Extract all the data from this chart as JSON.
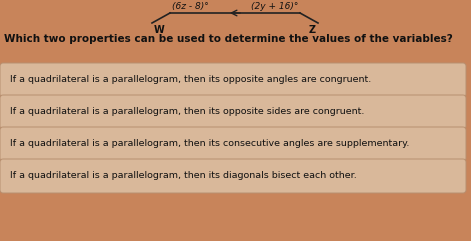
{
  "background_color": "#c8845a",
  "question": "Which two properties can be used to determine the values of the variables?",
  "question_fontsize": 7.5,
  "question_color": "#111111",
  "diagram_expr_left": "(6z - 8)°",
  "diagram_expr_right": "(2y + 16)°",
  "diagram_label_left": "W",
  "diagram_label_right": "Z",
  "options": [
    "If a quadrilateral is a parallelogram, then its opposite angles are congruent.",
    "If a quadrilateral is a parallelogram, then its opposite sides are congruent.",
    "If a quadrilateral is a parallelogram, then its consecutive angles are supplementary.",
    "If a quadrilateral is a parallelogram, then its diagonals bisect each other."
  ],
  "option_fontsize": 6.8,
  "option_text_color": "#111111",
  "option_box_facecolor": "#d9b89a",
  "option_box_edgecolor": "#b89070",
  "diagram_line_color": "#222222",
  "diagram_text_color": "#111111"
}
